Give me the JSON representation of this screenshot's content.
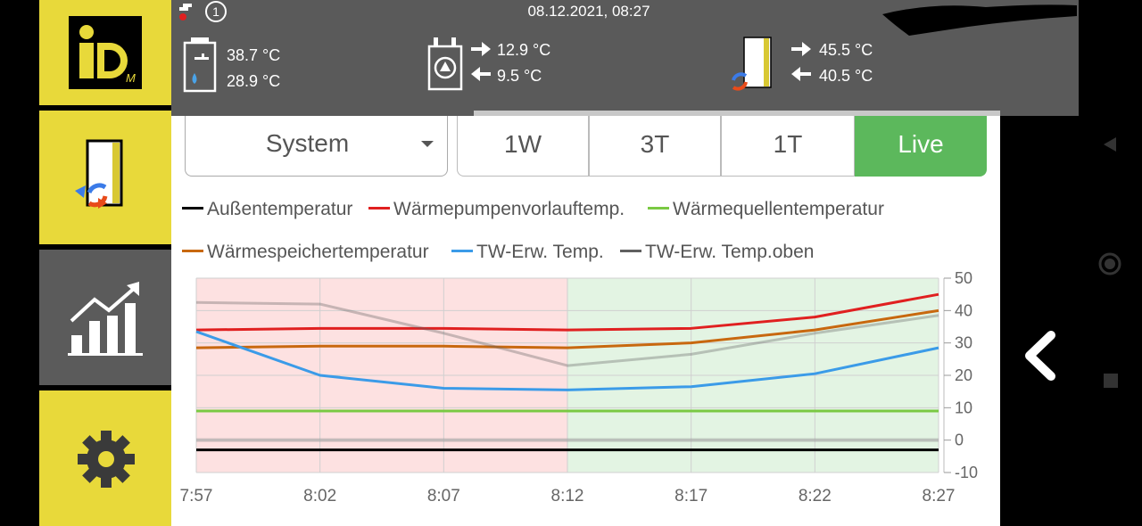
{
  "header": {
    "datetime": "08.12.2021, 08:27",
    "notification_count": "1",
    "hot_water": {
      "temp_top": "38.7 °C",
      "temp_bottom": "28.9 °C"
    },
    "heat_pump": {
      "temp_out": "12.9 °C",
      "temp_in": "9.5 °C"
    },
    "heating": {
      "temp_out": "45.5 °C",
      "temp_in": "40.5 °C"
    }
  },
  "sidebar": {
    "logo_text": "iD",
    "logo_sub": "M",
    "items": [
      {
        "icon": "system-icon"
      },
      {
        "icon": "chart-trend-icon"
      },
      {
        "icon": "gear-icon"
      }
    ]
  },
  "controls": {
    "system_select": "System",
    "ranges": [
      "1W",
      "3T",
      "1T",
      "Live"
    ],
    "active_range": "Live"
  },
  "colors": {
    "accent_yellow": "#e8d93a",
    "live_green": "#5cb85c",
    "zone_red": "#fde1e1",
    "zone_green": "#e3f4e3"
  },
  "chart_data": {
    "type": "line",
    "x": [
      "7:57",
      "8:02",
      "8:07",
      "8:12",
      "8:17",
      "8:22",
      "8:27"
    ],
    "ylim": [
      -10,
      50
    ],
    "yticks": [
      50,
      40,
      30,
      20,
      10,
      0,
      -10
    ],
    "grid": true,
    "legend": "top",
    "series": [
      {
        "name": "Außentemperatur",
        "color": "#000000",
        "values": [
          -3,
          -3,
          -3,
          -3,
          -3,
          -3,
          -3
        ]
      },
      {
        "name": "Wärmepumpenvorlauftemp.",
        "color": "#e02020",
        "values": [
          34,
          34.5,
          34.5,
          34,
          34.5,
          38,
          45
        ]
      },
      {
        "name": "Wärmequellentemperatur",
        "color": "#7ac943",
        "values": [
          9,
          9,
          9,
          9,
          9,
          9,
          9
        ]
      },
      {
        "name": "Wärmespeichertemperatur",
        "color": "#c8680f",
        "values": [
          28.5,
          29,
          29,
          28.5,
          30,
          34,
          40
        ]
      },
      {
        "name": "TW-Erw. Temp.",
        "color": "#3b9be8",
        "values": [
          33.5,
          20,
          16,
          15.5,
          16.5,
          20.5,
          28.5
        ]
      },
      {
        "name": "TW-Erw. Temp.oben",
        "color": "#606060",
        "values": [
          42.5,
          42,
          33,
          23,
          26.5,
          33,
          38.5
        ]
      }
    ]
  }
}
